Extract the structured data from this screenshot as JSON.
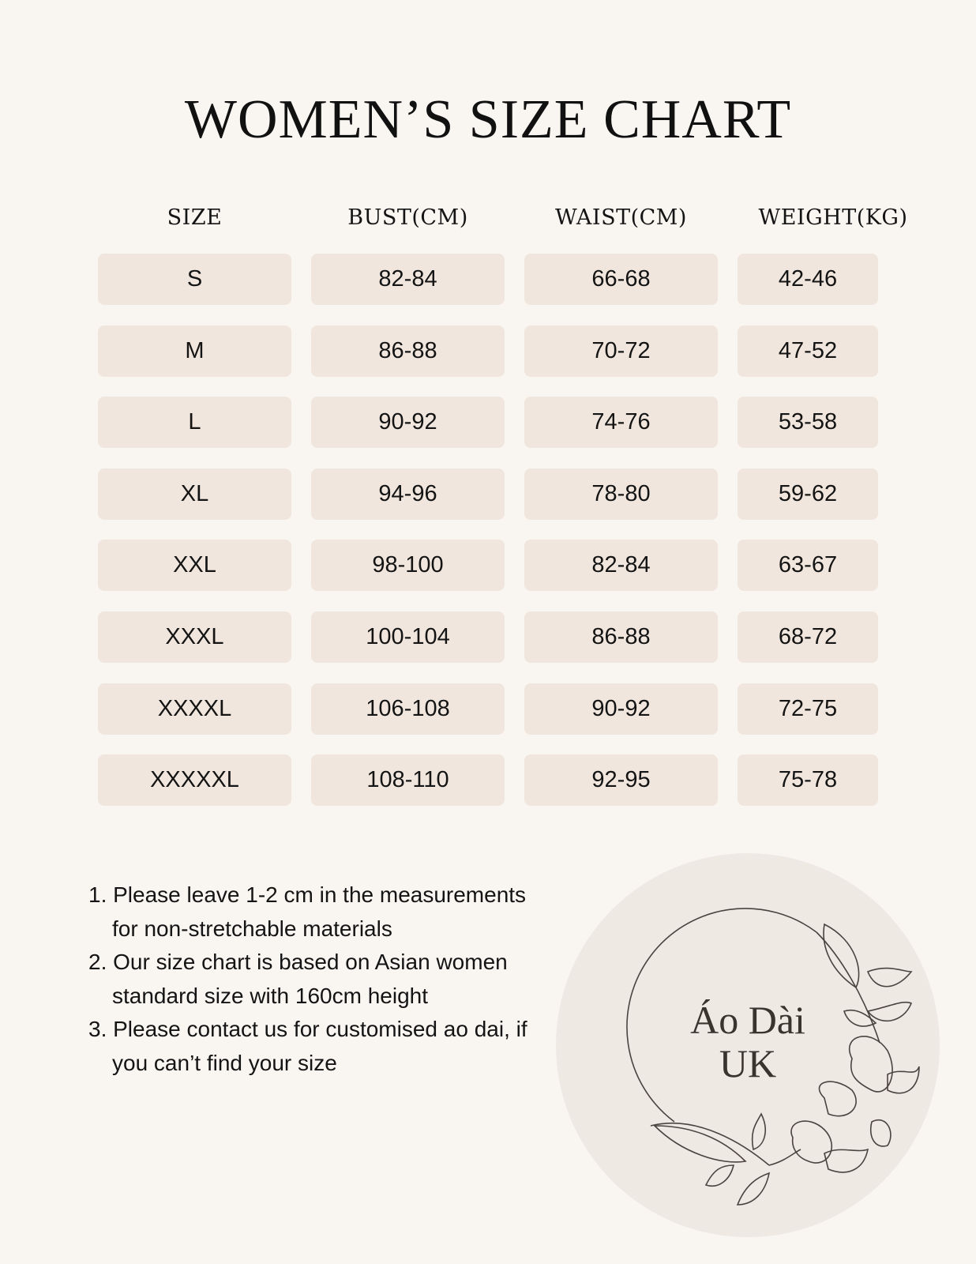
{
  "title": "WOMEN’S SIZE CHART",
  "table": {
    "headers": [
      "SIZE",
      "BUST(CM)",
      "WAIST(CM)",
      "WEIGHT(KG)"
    ],
    "rows": [
      [
        "S",
        "82-84",
        "66-68",
        "42-46"
      ],
      [
        "M",
        "86-88",
        "70-72",
        "47-52"
      ],
      [
        "L",
        "90-92",
        "74-76",
        "53-58"
      ],
      [
        "XL",
        "94-96",
        "78-80",
        "59-62"
      ],
      [
        "XXL",
        "98-100",
        "82-84",
        "63-67"
      ],
      [
        "XXXL",
        "100-104",
        "86-88",
        "68-72"
      ],
      [
        "XXXXL",
        "106-108",
        "90-92",
        "72-75"
      ],
      [
        "XXXXXL",
        "108-110",
        "92-95",
        "75-78"
      ]
    ]
  },
  "notes": [
    "1.  Please leave 1-2 cm in the measurements for non-stretchable materials",
    "2.  Our size chart is based on Asian women standard size with 160cm height",
    "3.  Please contact us for customised ao dai, if you can’t find your size"
  ],
  "logo": {
    "line1": "Áo Dài",
    "line2": "UK"
  },
  "colors": {
    "background": "#f9f6f2",
    "cell": "#f0e6dd",
    "logo_circle": "#efe9e4"
  }
}
